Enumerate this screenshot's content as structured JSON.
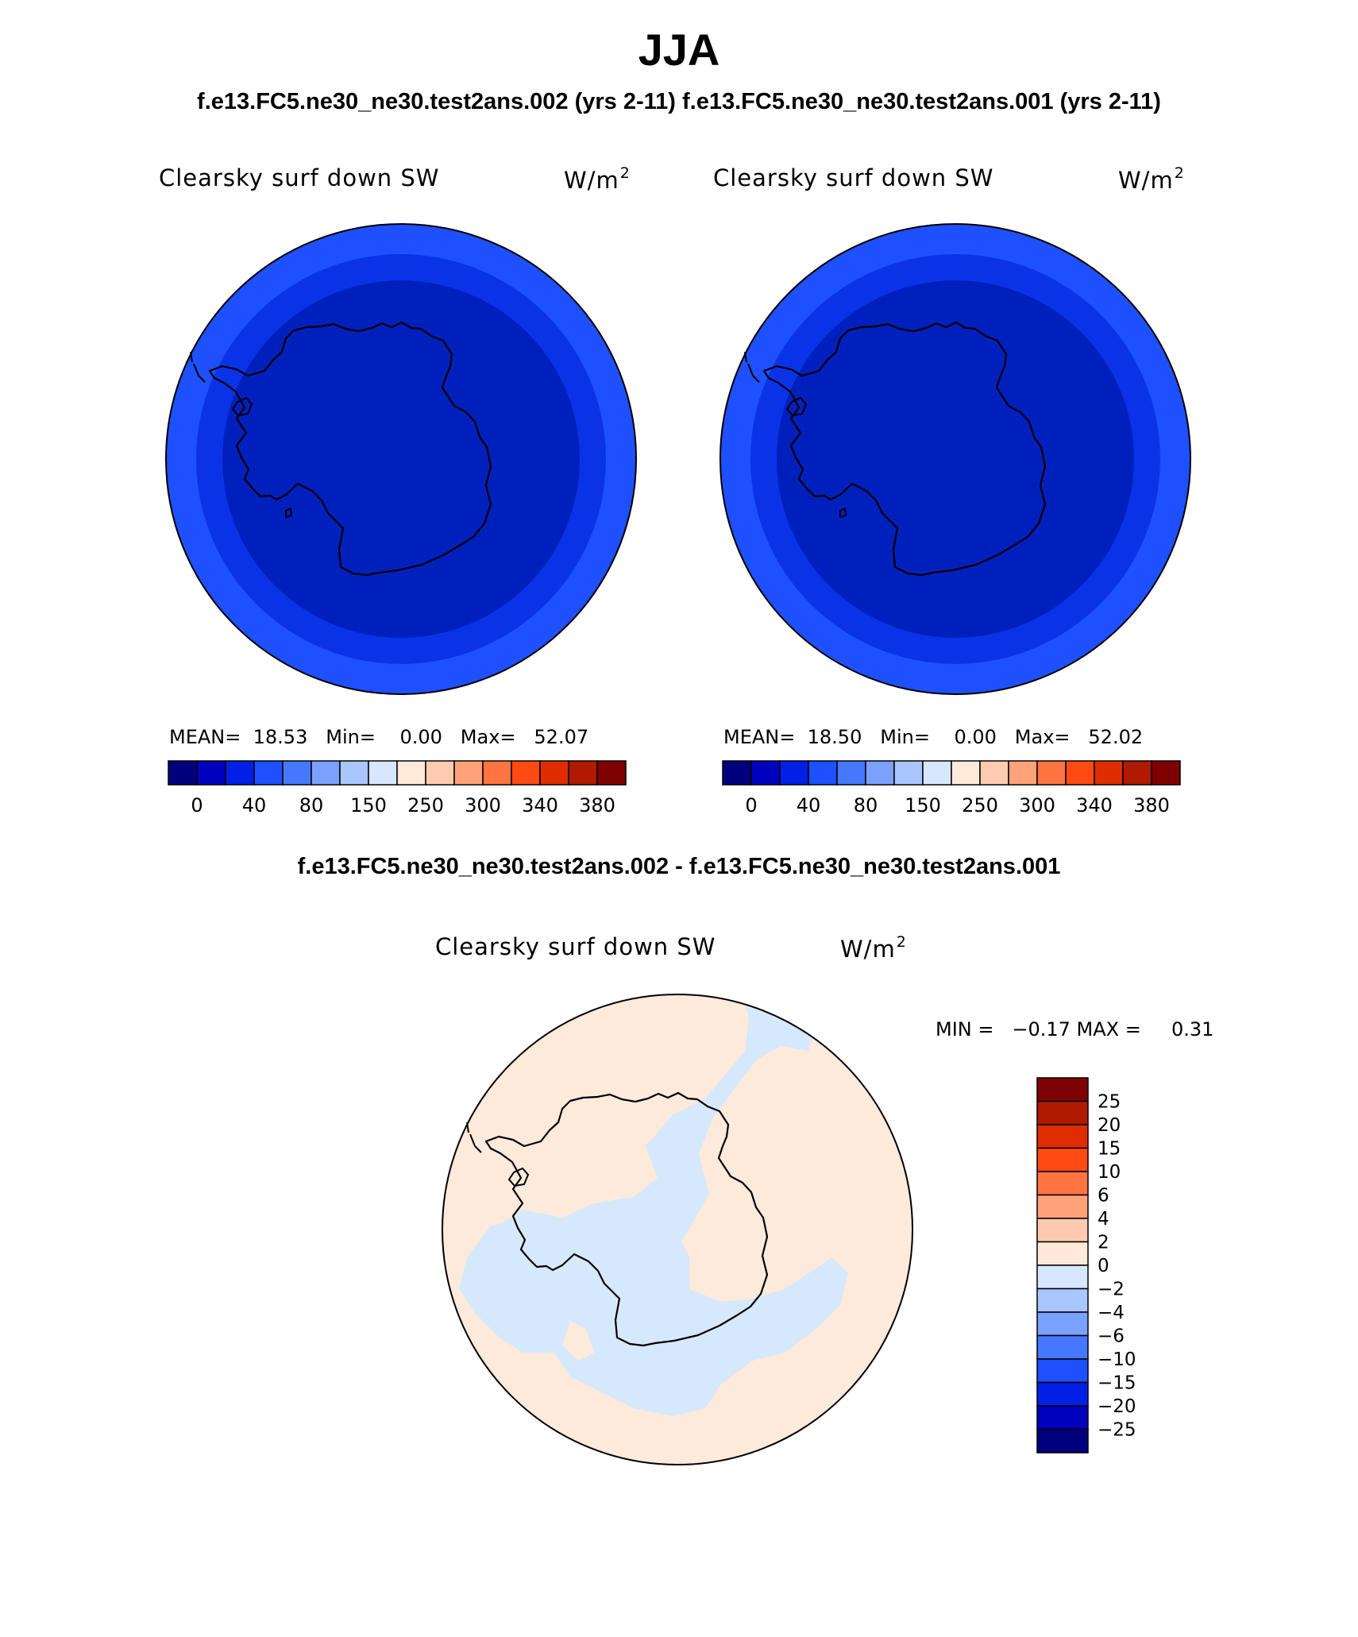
{
  "title": "JJA",
  "subtitle": "f.e13.FC5.ne30_ne30.test2ans.002 (yrs 2-11) f.e13.FC5.ne30_ne30.test2ans.001 (yrs 2-11)",
  "panels": [
    {
      "variable": "Clearsky surf down SW",
      "units_base": "W/m",
      "units_sup": "2",
      "mean_label": "MEAN=",
      "mean": "18.53",
      "min_label": "Min=",
      "min": "0.00",
      "max_label": "Max=",
      "max": "52.07"
    },
    {
      "variable": "Clearsky surf down SW",
      "units_base": "W/m",
      "units_sup": "2",
      "mean_label": "MEAN=",
      "mean": "18.50",
      "min_label": "Min=",
      "min": "0.00",
      "max_label": "Max=",
      "max": "52.02"
    }
  ],
  "field_colorbar": {
    "colors": [
      "#00007f",
      "#0000bf",
      "#0020e6",
      "#1e50ff",
      "#4677ff",
      "#7aa1ff",
      "#a9c6ff",
      "#d7e7ff",
      "#ffe9d9",
      "#ffcbb0",
      "#ffa27a",
      "#ff7440",
      "#ff4a12",
      "#e02d00",
      "#b01a00",
      "#7f0000"
    ],
    "tick_labels": [
      "0",
      "40",
      "80",
      "150",
      "250",
      "300",
      "340",
      "380"
    ]
  },
  "field_map_colors": {
    "outer_ring": "#1e50ff",
    "middle_ring": "#0a33e8",
    "inner_disk": "#0020be"
  },
  "difference": {
    "title": "f.e13.FC5.ne30_ne30.test2ans.002 - f.e13.FC5.ne30_ne30.test2ans.001",
    "variable": "Clearsky surf down SW",
    "units_base": "W/m",
    "units_sup": "2",
    "minmax_text": "MIN =   −0.17 MAX =     0.31",
    "positive_color": "#fdeadb",
    "negative_color": "#d6e8fb",
    "colorbar": {
      "colors_top_to_bottom": [
        "#7f0000",
        "#b01a00",
        "#e02d00",
        "#ff4a12",
        "#ff7440",
        "#ffa27a",
        "#ffcbb0",
        "#ffe9d9",
        "#d7e7ff",
        "#a9c6ff",
        "#7aa1ff",
        "#4677ff",
        "#1e50ff",
        "#0020e6",
        "#0000bf",
        "#00007f"
      ],
      "labels_top_to_bottom": [
        "25",
        "20",
        "15",
        "10",
        "6",
        "4",
        "2",
        "0",
        "−2",
        "−4",
        "−6",
        "−10",
        "−15",
        "−20",
        "−25"
      ]
    }
  }
}
